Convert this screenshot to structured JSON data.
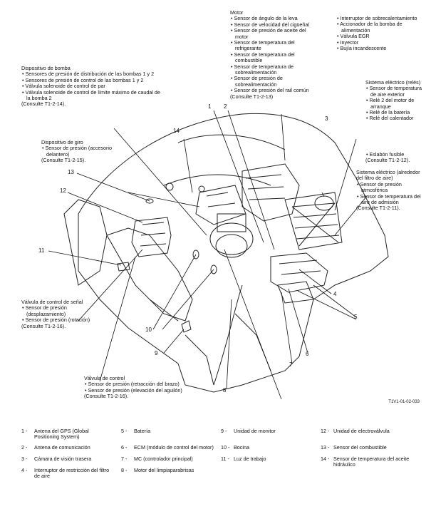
{
  "callouts": [
    {
      "id": "motor",
      "title": "Motor",
      "items": [
        "Sensor de ángulo de la leva",
        "Sensor de velocidad del cigüeñal",
        "Sensor de presión de aceite del motor",
        "Sensor de temperatura del refrigerante",
        "Sensor de temperatura del combustible",
        "Sensor de temperatura de sobrealimentación",
        "Sensor de presión de sobrealimentación",
        "Sensor de presión del rail común"
      ],
      "ref": "(Consulte T1-2-13)"
    },
    {
      "id": "motor2",
      "title": "",
      "items": [
        "Interruptor de sobrecalentamiento",
        "Accionador de la bomba de alimentación",
        "Válvula EGR",
        "Inyector",
        "Bujía incandescente"
      ],
      "ref": ""
    },
    {
      "id": "bomba",
      "title": "Dispositivo de bomba",
      "items": [
        "Sensores de presión de distribución de las bombas 1 y 2",
        "Sensores de presión de control de las bombas 1 y 2",
        "Válvula solenoide de control de par",
        "Válvula solenoide de control de límite máximo de caudal de la bomba 2"
      ],
      "ref": "(Consulte T1-2-14)."
    },
    {
      "id": "giro",
      "title": "Dispositivo de giro",
      "items": [
        "Sensor de presión (accesorio delantero)"
      ],
      "ref": "(Consulte T1-2-15)."
    },
    {
      "id": "reles",
      "title": "Sistema eléctrico (relés)",
      "items": [
        "Sensor de temperatura de aire exterior",
        "Relé 2 del motor de arranque",
        "Relé de la batería",
        "Relé del calentador"
      ],
      "ref": "(Consulte T1-2-12)."
    },
    {
      "id": "fusible",
      "title": "",
      "items": [
        "Eslabón fusible"
      ],
      "ref": ""
    },
    {
      "id": "filtro",
      "title": "Sistema eléctrico (alrededor del filtro de aire)",
      "items": [
        "Sensor de presión atmosférica",
        "Sensor de temperatura del aire de admisión"
      ],
      "ref": "(Consulte T1-2-11)."
    },
    {
      "id": "senal",
      "title": "Válvula de control de señal",
      "items": [
        "Sensor de presión (desplazamiento)",
        "Sensor de presión (rotación)"
      ],
      "ref": "(Consulte T1-2-16)."
    },
    {
      "id": "control",
      "title": "Válvula de control",
      "items": [
        "Sensor de presión (retracción del brazo)",
        "Sensor de presión (elevación del aguilón)"
      ],
      "ref": "(Consulte T1-2-16)."
    }
  ],
  "numbers": [
    "1",
    "2",
    "3",
    "4",
    "5",
    "6",
    "7",
    "8",
    "9",
    "10",
    "11",
    "12",
    "13",
    "14"
  ],
  "figure_code": "T1V1-01-02-033",
  "legend": [
    {
      "n": "1 -",
      "t": "Antena del GPS (Global Positioning System)"
    },
    {
      "n": "2 -",
      "t": "Antena de comunicación"
    },
    {
      "n": "3 -",
      "t": "Cámara de visión trasera"
    },
    {
      "n": "4 -",
      "t": "Interruptor de restricción del filtro de aire"
    },
    {
      "n": "5 -",
      "t": "Batería"
    },
    {
      "n": "6 -",
      "t": "ECM (módulo de control del motor)"
    },
    {
      "n": "7 -",
      "t": "MC (controlador principal)"
    },
    {
      "n": "8 -",
      "t": "Motor del limpiaparabrisas"
    },
    {
      "n": "9 -",
      "t": "Unidad de monitor"
    },
    {
      "n": "10 -",
      "t": "Bocina"
    },
    {
      "n": "11 -",
      "t": "Luz de trabajo"
    },
    {
      "n": "12 -",
      "t": "Unidad de electroválvula"
    },
    {
      "n": "13 -",
      "t": "Sensor del combustible"
    },
    {
      "n": "14 -",
      "t": "Sensor de temperatura del aceite hidráulico"
    }
  ]
}
